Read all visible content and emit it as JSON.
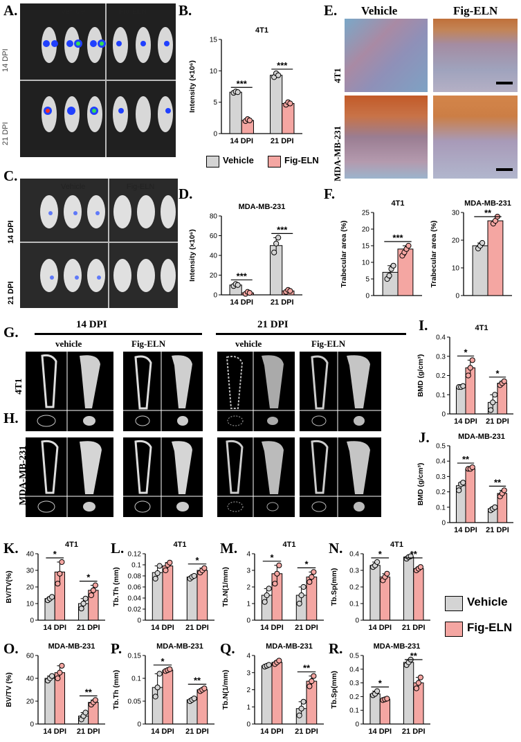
{
  "colors": {
    "vehicle": "#d4d4d4",
    "figeln": "#f4a6a2"
  },
  "legend": {
    "vehicle": "Vehicle",
    "figeln": "Fig-ELN"
  },
  "panels": {
    "A": {
      "label": "A.",
      "col_headers": [
        "Vehicle",
        "Fig-ELN"
      ],
      "row_labels": [
        "14 DPI",
        "21 DPI"
      ]
    },
    "B": {
      "label": "B."
    },
    "C": {
      "label": "C.",
      "col_headers": [
        "Vehicle",
        "Fig-ELN"
      ],
      "row_labels": [
        "14 DPI",
        "21 DPI"
      ]
    },
    "D": {
      "label": "D."
    },
    "E": {
      "label": "E.",
      "col_headers": [
        "Vehicle",
        "Fig-ELN"
      ],
      "row_labels": [
        "4T1",
        "MDA-MB-231"
      ]
    },
    "F": {
      "label": "F."
    },
    "G": {
      "label": "G.",
      "group_headers": [
        "14 DPI",
        "21 DPI"
      ],
      "col_headers": [
        "vehicle",
        "Fig-ELN",
        "vehicle",
        "Fig-ELN"
      ],
      "row_label": "4T1"
    },
    "H": {
      "label": "H.",
      "row_label": "MDA-MB-231"
    },
    "I": {
      "label": "I."
    },
    "J": {
      "label": "J."
    },
    "K": {
      "label": "K."
    },
    "L": {
      "label": "L."
    },
    "M": {
      "label": "M."
    },
    "N": {
      "label": "N."
    },
    "O": {
      "label": "O."
    },
    "P": {
      "label": "P."
    },
    "Q": {
      "label": "Q."
    },
    "R": {
      "label": "R."
    }
  },
  "chart_data": [
    {
      "id": "B",
      "type": "bar",
      "title": "4T1",
      "ylabel": "Intensity (×10⁶)",
      "categories": [
        "14 DPI",
        "21 DPI"
      ],
      "ylim": [
        0,
        15
      ],
      "yticks": [
        0,
        5,
        10,
        15
      ],
      "series": [
        {
          "name": "Vehicle",
          "values": [
            6.6,
            9.3
          ]
        },
        {
          "name": "Fig-ELN",
          "values": [
            2.1,
            4.8
          ]
        }
      ],
      "points": [
        [
          [
            6.5,
            6.7,
            6.6
          ],
          [
            9.0,
            9.6,
            9.3
          ]
        ],
        [
          [
            2.0,
            2.3,
            2.1
          ],
          [
            4.6,
            5.0,
            4.8
          ]
        ]
      ],
      "sig": [
        "***",
        "***"
      ]
    },
    {
      "id": "D",
      "type": "bar",
      "title": "MDA-MB-231",
      "ylabel": "Intensity (×10⁶)",
      "categories": [
        "14 DPI",
        "21 DPI"
      ],
      "ylim": [
        0,
        80
      ],
      "yticks": [
        0,
        20,
        40,
        60,
        80
      ],
      "series": [
        {
          "name": "Vehicle",
          "values": [
            10,
            50
          ]
        },
        {
          "name": "Fig-ELN",
          "values": [
            2,
            4
          ]
        }
      ],
      "points": [
        [
          [
            9,
            11,
            10
          ],
          [
            43,
            52,
            58
          ]
        ],
        [
          [
            1,
            3,
            2
          ],
          [
            3,
            5,
            4
          ]
        ]
      ],
      "sig": [
        "***",
        "***"
      ]
    },
    {
      "id": "F1",
      "type": "bar",
      "title": "4T1",
      "ylabel": "Trabecular area (%)",
      "categories": [
        ""
      ],
      "ylim": [
        0,
        25
      ],
      "yticks": [
        0,
        5,
        10,
        15,
        20,
        25
      ],
      "series": [
        {
          "name": "Vehicle",
          "values": [
            7
          ]
        },
        {
          "name": "Fig-ELN",
          "values": [
            14
          ]
        }
      ],
      "points": [
        [
          [
            5,
            6,
            8,
            9
          ]
        ],
        [
          [
            12,
            13,
            14,
            15
          ]
        ]
      ],
      "sig": [
        "***"
      ]
    },
    {
      "id": "F2",
      "type": "bar",
      "title": "MDA-MB-231",
      "ylabel": "Trabecular area (%)",
      "categories": [
        ""
      ],
      "ylim": [
        0,
        30
      ],
      "yticks": [
        0,
        10,
        20,
        30
      ],
      "series": [
        {
          "name": "Vehicle",
          "values": [
            18
          ]
        },
        {
          "name": "Fig-ELN",
          "values": [
            27
          ]
        }
      ],
      "points": [
        [
          [
            17,
            18,
            19
          ]
        ],
        [
          [
            26,
            27,
            28.5
          ]
        ]
      ],
      "sig": [
        "**"
      ]
    },
    {
      "id": "I",
      "type": "bar",
      "title": "4T1",
      "ylabel": "BMD (g/cm³)",
      "categories": [
        "14 DPI",
        "21 DPI"
      ],
      "ylim": [
        0,
        0.4
      ],
      "yticks": [
        0,
        0.1,
        0.2,
        0.3,
        0.4
      ],
      "series": [
        {
          "name": "Vehicle",
          "values": [
            0.14,
            0.06
          ]
        },
        {
          "name": "Fig-ELN",
          "values": [
            0.24,
            0.16
          ]
        }
      ],
      "points": [
        [
          [
            0.14,
            0.14,
            0.145
          ],
          [
            0.02,
            0.06,
            0.1
          ]
        ],
        [
          [
            0.2,
            0.24,
            0.28
          ],
          [
            0.15,
            0.16,
            0.17
          ]
        ]
      ],
      "sig": [
        "*",
        "*"
      ]
    },
    {
      "id": "J",
      "type": "bar",
      "title": "MDA-MB-231",
      "ylabel": "BMD (g/cm³)",
      "categories": [
        "14 DPI",
        "21 DPI"
      ],
      "ylim": [
        0,
        0.5
      ],
      "yticks": [
        0,
        0.1,
        0.2,
        0.3,
        0.4,
        0.5
      ],
      "series": [
        {
          "name": "Vehicle",
          "values": [
            0.24,
            0.09
          ]
        },
        {
          "name": "Fig-ELN",
          "values": [
            0.35,
            0.19
          ]
        }
      ],
      "points": [
        [
          [
            0.21,
            0.25,
            0.26
          ],
          [
            0.08,
            0.09,
            0.1
          ]
        ],
        [
          [
            0.35,
            0.35,
            0.36
          ],
          [
            0.17,
            0.19,
            0.21
          ]
        ]
      ],
      "sig": [
        "**",
        "**"
      ]
    },
    {
      "id": "K",
      "type": "bar",
      "title": "4T1",
      "ylabel": "BV/TV(%)",
      "categories": [
        "14 DPI",
        "21 DPI"
      ],
      "ylim": [
        0,
        40
      ],
      "yticks": [
        0,
        10,
        20,
        30,
        40
      ],
      "series": [
        {
          "name": "Vehicle",
          "values": [
            13,
            10
          ]
        },
        {
          "name": "Fig-ELN",
          "values": [
            29,
            18
          ]
        }
      ],
      "points": [
        [
          [
            12,
            13,
            14
          ],
          [
            7,
            10,
            13
          ]
        ],
        [
          [
            22,
            28,
            35
          ],
          [
            15,
            18,
            21
          ]
        ]
      ],
      "sig": [
        "*",
        "*"
      ]
    },
    {
      "id": "L",
      "type": "bar",
      "title": "4T1",
      "ylabel": "Tb.Th (mm)",
      "categories": [
        "14 DPI",
        "21 DPI"
      ],
      "ylim": [
        0,
        0.12
      ],
      "yticks": [
        0,
        0.02,
        0.04,
        0.06,
        0.08,
        0.1,
        0.12
      ],
      "series": [
        {
          "name": "Vehicle",
          "values": [
            0.086,
            0.078
          ]
        },
        {
          "name": "Fig-ELN",
          "values": [
            0.098,
            0.09
          ]
        }
      ],
      "points": [
        [
          [
            0.075,
            0.085,
            0.098
          ],
          [
            0.075,
            0.078,
            0.08
          ]
        ],
        [
          [
            0.09,
            0.1,
            0.104
          ],
          [
            0.086,
            0.09,
            0.094
          ]
        ]
      ],
      "sig": [
        "",
        "*"
      ]
    },
    {
      "id": "M",
      "type": "bar",
      "title": "4T1",
      "ylabel": "Tb.N(1/mm)",
      "categories": [
        "14 DPI",
        "21 DPI"
      ],
      "ylim": [
        0,
        4
      ],
      "yticks": [
        0,
        1,
        2,
        3,
        4
      ],
      "series": [
        {
          "name": "Vehicle",
          "values": [
            1.5,
            1.5
          ]
        },
        {
          "name": "Fig-ELN",
          "values": [
            2.8,
            2.6
          ]
        }
      ],
      "points": [
        [
          [
            1.1,
            1.5,
            1.9
          ],
          [
            1.0,
            1.5,
            2.0
          ]
        ],
        [
          [
            2.2,
            2.8,
            3.3
          ],
          [
            2.3,
            2.6,
            2.9
          ]
        ]
      ],
      "sig": [
        "*",
        "*"
      ]
    },
    {
      "id": "N",
      "type": "bar",
      "title": "4T1",
      "ylabel": "Tb.Sp(mm)",
      "categories": [
        "14 DPI",
        "21 DPI"
      ],
      "ylim": [
        0,
        0.4
      ],
      "yticks": [
        0,
        0.1,
        0.2,
        0.3,
        0.4
      ],
      "series": [
        {
          "name": "Vehicle",
          "values": [
            0.33,
            0.38
          ]
        },
        {
          "name": "Fig-ELN",
          "values": [
            0.26,
            0.31
          ]
        }
      ],
      "points": [
        [
          [
            0.32,
            0.33,
            0.35
          ],
          [
            0.37,
            0.38,
            0.385
          ]
        ],
        [
          [
            0.24,
            0.26,
            0.28
          ],
          [
            0.3,
            0.31,
            0.32
          ]
        ]
      ],
      "sig": [
        "*",
        "**"
      ]
    },
    {
      "id": "O",
      "type": "bar",
      "title": "MDA-MB-231",
      "ylabel": "BV/TV (%)",
      "categories": [
        "14 DPI",
        "21 DPI"
      ],
      "ylim": [
        0,
        60
      ],
      "yticks": [
        0,
        20,
        40,
        60
      ],
      "series": [
        {
          "name": "Vehicle",
          "values": [
            40,
            7
          ]
        },
        {
          "name": "Fig-ELN",
          "values": [
            45,
            19
          ]
        }
      ],
      "points": [
        [
          [
            38,
            40,
            42
          ],
          [
            4,
            7,
            10
          ]
        ],
        [
          [
            40,
            45,
            51
          ],
          [
            17,
            19,
            21
          ]
        ]
      ],
      "sig": [
        "",
        "**"
      ]
    },
    {
      "id": "P",
      "type": "bar",
      "title": "MDA-MB-231",
      "ylabel": "Tb.Th (mm)",
      "categories": [
        "14 DPI",
        "21 DPI"
      ],
      "ylim": [
        0,
        0.15
      ],
      "yticks": [
        0,
        0.05,
        0.1,
        0.15
      ],
      "series": [
        {
          "name": "Vehicle",
          "values": [
            0.08,
            0.053
          ]
        },
        {
          "name": "Fig-ELN",
          "values": [
            0.118,
            0.075
          ]
        }
      ],
      "points": [
        [
          [
            0.06,
            0.08,
            0.11
          ],
          [
            0.05,
            0.053,
            0.056
          ]
        ],
        [
          [
            0.116,
            0.118,
            0.12
          ],
          [
            0.072,
            0.075,
            0.078
          ]
        ]
      ],
      "sig": [
        "*",
        "**"
      ]
    },
    {
      "id": "Q",
      "type": "bar",
      "title": "MDA-MB-231",
      "ylabel": "Tb.N(1/mm)",
      "categories": [
        "14 DPI",
        "21 DPI"
      ],
      "ylim": [
        0,
        4
      ],
      "yticks": [
        0,
        1,
        2,
        3,
        4
      ],
      "series": [
        {
          "name": "Vehicle",
          "values": [
            3.4,
            0.9
          ]
        },
        {
          "name": "Fig-ELN",
          "values": [
            3.6,
            2.5
          ]
        }
      ],
      "points": [
        [
          [
            3.35,
            3.4,
            3.45
          ],
          [
            0.5,
            0.9,
            1.3
          ]
        ],
        [
          [
            3.5,
            3.6,
            3.7
          ],
          [
            2.2,
            2.5,
            2.8
          ]
        ]
      ],
      "sig": [
        "",
        "**"
      ]
    },
    {
      "id": "R",
      "type": "bar",
      "title": "MDA-MB-231",
      "ylabel": "Tb.Sp(mm)",
      "categories": [
        "14 DPI",
        "21 DPI"
      ],
      "ylim": [
        0,
        0.5
      ],
      "yticks": [
        0,
        0.1,
        0.2,
        0.3,
        0.4,
        0.5
      ],
      "series": [
        {
          "name": "Vehicle",
          "values": [
            0.22,
            0.45
          ]
        },
        {
          "name": "Fig-ELN",
          "values": [
            0.18,
            0.3
          ]
        }
      ],
      "points": [
        [
          [
            0.21,
            0.22,
            0.24
          ],
          [
            0.43,
            0.45,
            0.47
          ]
        ],
        [
          [
            0.175,
            0.18,
            0.185
          ],
          [
            0.26,
            0.3,
            0.34
          ]
        ]
      ],
      "sig": [
        "*",
        "**"
      ]
    }
  ]
}
